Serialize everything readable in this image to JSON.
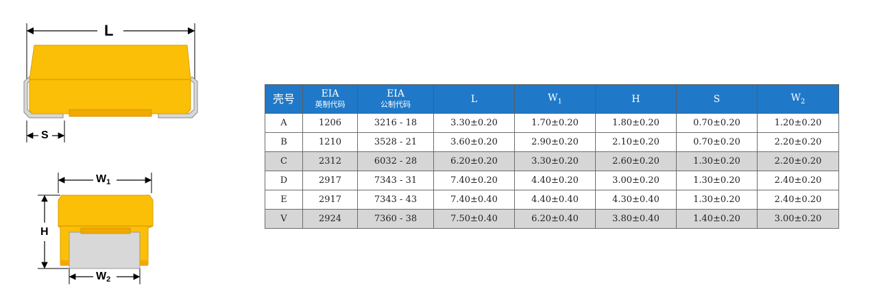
{
  "diagram": {
    "labels": {
      "L": "L",
      "S": "S",
      "W1": "W",
      "W1_sub": "1",
      "H": "H",
      "W2": "W",
      "W2_sub": "2"
    },
    "colors": {
      "body": "#fcbf07",
      "terminal": "#d8d8d8",
      "outline": "#888888"
    }
  },
  "table": {
    "headers": [
      {
        "main": "壳号",
        "sub": ""
      },
      {
        "main": "EIA",
        "sub": "英制代码"
      },
      {
        "main": "EIA",
        "sub": "公制代码"
      },
      {
        "main": "L",
        "sub": ""
      },
      {
        "main": "W",
        "main_sub": "1",
        "sub": ""
      },
      {
        "main": "H",
        "sub": ""
      },
      {
        "main": "S",
        "sub": ""
      },
      {
        "main": "W",
        "main_sub": "2",
        "sub": ""
      }
    ],
    "rows": [
      {
        "cells": [
          "A",
          "1206",
          "3216 - 18",
          "3.30±0.20",
          "1.70±0.20",
          "1.80±0.20",
          "0.70±0.20",
          "1.20±0.20"
        ],
        "shaded": false
      },
      {
        "cells": [
          "B",
          "1210",
          "3528 - 21",
          "3.60±0.20",
          "2.90±0.20",
          "2.10±0.20",
          "0.70±0.20",
          "2.20±0.20"
        ],
        "shaded": false
      },
      {
        "cells": [
          "C",
          "2312",
          "6032 - 28",
          "6.20±0.20",
          "3.30±0.20",
          "2.60±0.20",
          "1.30±0.20",
          "2.20±0.20"
        ],
        "shaded": true
      },
      {
        "cells": [
          "D",
          "2917",
          "7343 - 31",
          "7.40±0.20",
          "4.40±0.20",
          "3.00±0.20",
          "1.30±0.20",
          "2.40±0.20"
        ],
        "shaded": false
      },
      {
        "cells": [
          "E",
          "2917",
          "7343 - 43",
          "7.40±0.40",
          "4.40±0.40",
          "4.30±0.40",
          "1.30±0.20",
          "2.40±0.20"
        ],
        "shaded": false
      },
      {
        "cells": [
          "V",
          "2924",
          "7360 - 38",
          "7.50±0.40",
          "6.20±0.40",
          "3.80±0.40",
          "1.40±0.20",
          "3.00±0.20"
        ],
        "shaded": true
      }
    ],
    "colors": {
      "header_bg": "#1f79c8",
      "header_text": "#ffffff",
      "shade_bg": "#d6d6d6"
    }
  }
}
